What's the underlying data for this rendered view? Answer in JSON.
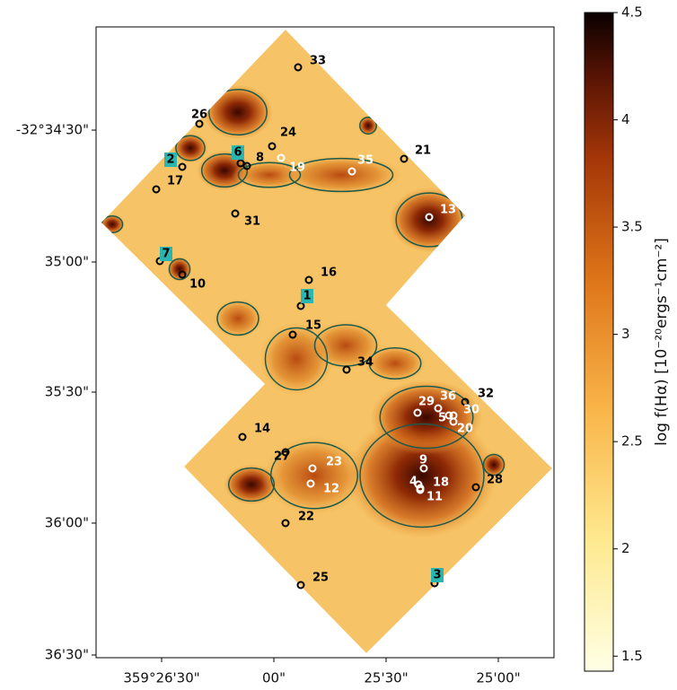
{
  "figure": {
    "x_ticks": [
      "359°26'30\"",
      "00\"",
      "25'30\"",
      "25'00\""
    ],
    "y_ticks": [
      "-32°34'30\"",
      "35'00\"",
      "35'30\"",
      "36'00\"",
      "36'30\""
    ],
    "colorbar": {
      "label": "log f(Hα) [10⁻²⁰ergs⁻¹cm⁻²]",
      "lim": [
        1.43,
        4.5
      ],
      "ticks": [
        1.5,
        2.0,
        2.5,
        3.0,
        3.5,
        4.0,
        4.5
      ]
    },
    "sources": [
      "33",
      "26",
      "24",
      "21",
      "6",
      "2",
      "8",
      "19",
      "35",
      "17",
      "13",
      "31",
      "7",
      "10",
      "16",
      "1",
      "15",
      "34",
      "29",
      "36",
      "32",
      "5",
      "30",
      "20",
      "14",
      "27",
      "23",
      "9",
      "4",
      "18",
      "12",
      "11",
      "28",
      "22",
      "3",
      "25"
    ]
  }
}
